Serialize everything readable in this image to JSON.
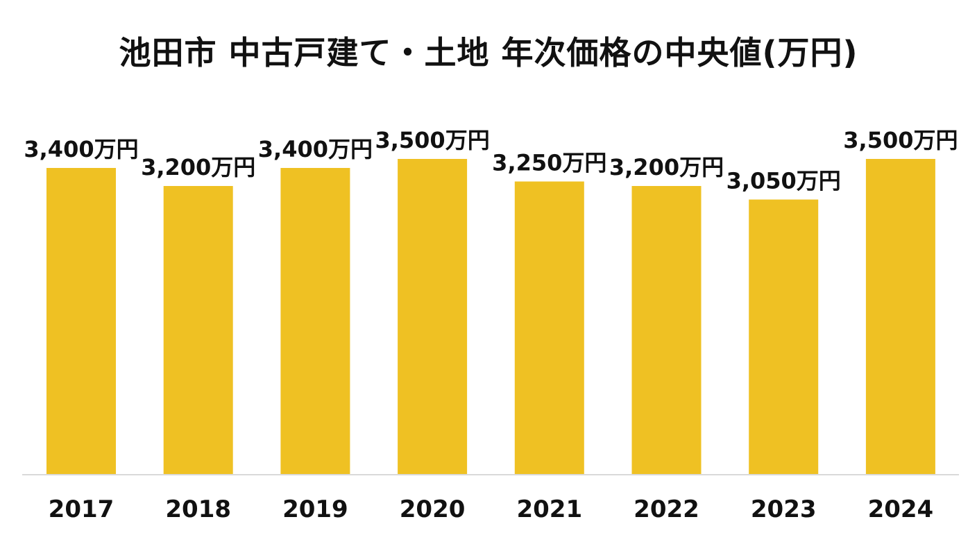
{
  "chart_data": {
    "type": "bar",
    "title": "池田市 中古戸建て・土地 年次価格の中央値(万円)",
    "categories": [
      "2017",
      "2018",
      "2019",
      "2020",
      "2021",
      "2022",
      "2023",
      "2024"
    ],
    "values": [
      3400,
      3200,
      3400,
      3500,
      3250,
      3200,
      3050,
      3500
    ],
    "data_labels": [
      "3,400万円",
      "3,200万円",
      "3,400万円",
      "3,500万円",
      "3,250万円",
      "3,200万円",
      "3,050万円",
      "3,500万円"
    ],
    "xlabel": "",
    "ylabel": "",
    "ylim": [
      0,
      4000
    ],
    "grid": false,
    "legend": "none",
    "colors": {
      "bar": "#EFC123",
      "axis": "#D9D9D9",
      "text": "#111111"
    }
  }
}
